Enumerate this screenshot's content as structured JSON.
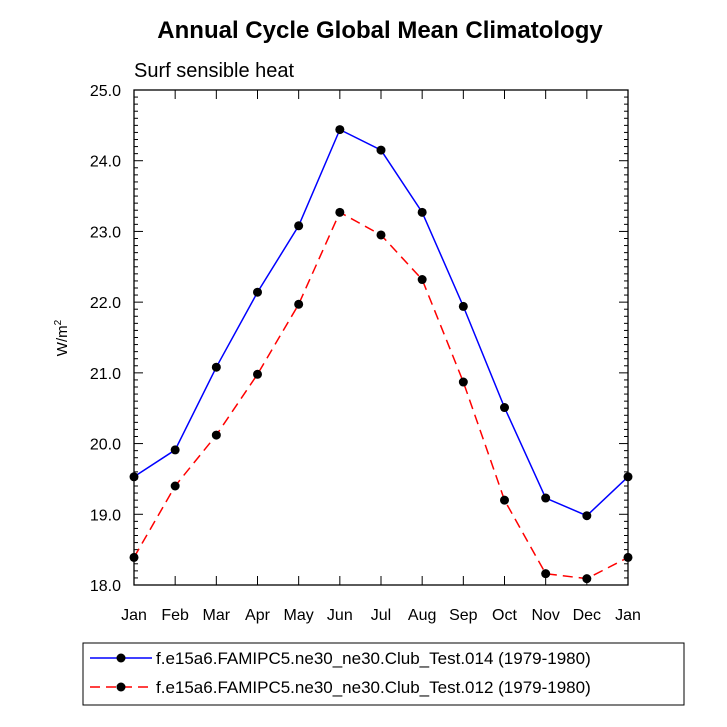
{
  "chart_data": {
    "type": "line",
    "title": "Annual Cycle Global Mean Climatology",
    "subtitle": "Surf sensible heat",
    "ylabel": "W/m",
    "ylabel_superscript": "2",
    "categories": [
      "Jan",
      "Feb",
      "Mar",
      "Apr",
      "May",
      "Jun",
      "Jul",
      "Aug",
      "Sep",
      "Oct",
      "Nov",
      "Dec",
      "Jan"
    ],
    "ylim": [
      18.0,
      25.0
    ],
    "yticks": [
      "18.0",
      "19.0",
      "20.0",
      "21.0",
      "22.0",
      "23.0",
      "24.0",
      "25.0"
    ],
    "series": [
      {
        "name": "f.e15a6.FAMIPC5.ne30_ne30.Club_Test.014 (1979-1980)",
        "color": "#0000ff",
        "dash": "solid",
        "values": [
          19.53,
          19.91,
          21.08,
          22.14,
          23.08,
          24.44,
          24.15,
          23.27,
          21.94,
          20.51,
          19.23,
          18.98,
          19.53
        ]
      },
      {
        "name": "f.e15a6.FAMIPC5.ne30_ne30.Club_Test.012 (1979-1980)",
        "color": "#ff0000",
        "dash": "dashed",
        "values": [
          18.39,
          19.4,
          20.12,
          20.98,
          21.97,
          23.27,
          22.95,
          22.32,
          20.87,
          19.2,
          18.16,
          18.09,
          18.39
        ]
      }
    ]
  }
}
